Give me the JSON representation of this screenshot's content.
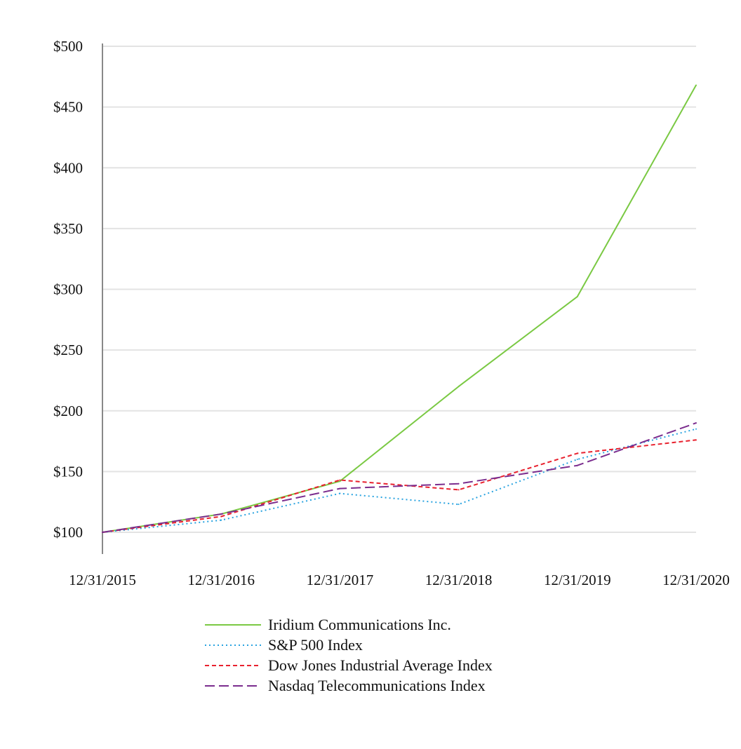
{
  "chart_data": {
    "type": "line",
    "title": "",
    "xlabel": "",
    "ylabel": "",
    "categories": [
      "12/31/2015",
      "12/31/2016",
      "12/31/2017",
      "12/31/2018",
      "12/31/2019",
      "12/31/2020"
    ],
    "ylim": [
      100,
      500
    ],
    "y_ticks": [
      "$100",
      "$150",
      "$200",
      "$250",
      "$300",
      "$350",
      "$400",
      "$450",
      "$500"
    ],
    "y_tick_values": [
      100,
      150,
      200,
      250,
      300,
      350,
      400,
      450,
      500
    ],
    "grid": "horizontal",
    "legend_position": "bottom",
    "series": [
      {
        "name": "Iridium Communications Inc.",
        "values": [
          100,
          115,
          142,
          220,
          294,
          468
        ],
        "color": "#7ac943",
        "dash": "solid"
      },
      {
        "name": "S&P 500 Index",
        "values": [
          100,
          110,
          132,
          123,
          160,
          185
        ],
        "color": "#29a3e0",
        "dash": "dotted"
      },
      {
        "name": "Dow Jones Industrial Average Index",
        "values": [
          100,
          113,
          143,
          135,
          165,
          176
        ],
        "color": "#e8212e",
        "dash": "dashed"
      },
      {
        "name": "Nasdaq Telecommunications Index",
        "values": [
          100,
          115,
          136,
          140,
          155,
          190
        ],
        "color": "#7b2d8e",
        "dash": "longdash"
      }
    ]
  }
}
